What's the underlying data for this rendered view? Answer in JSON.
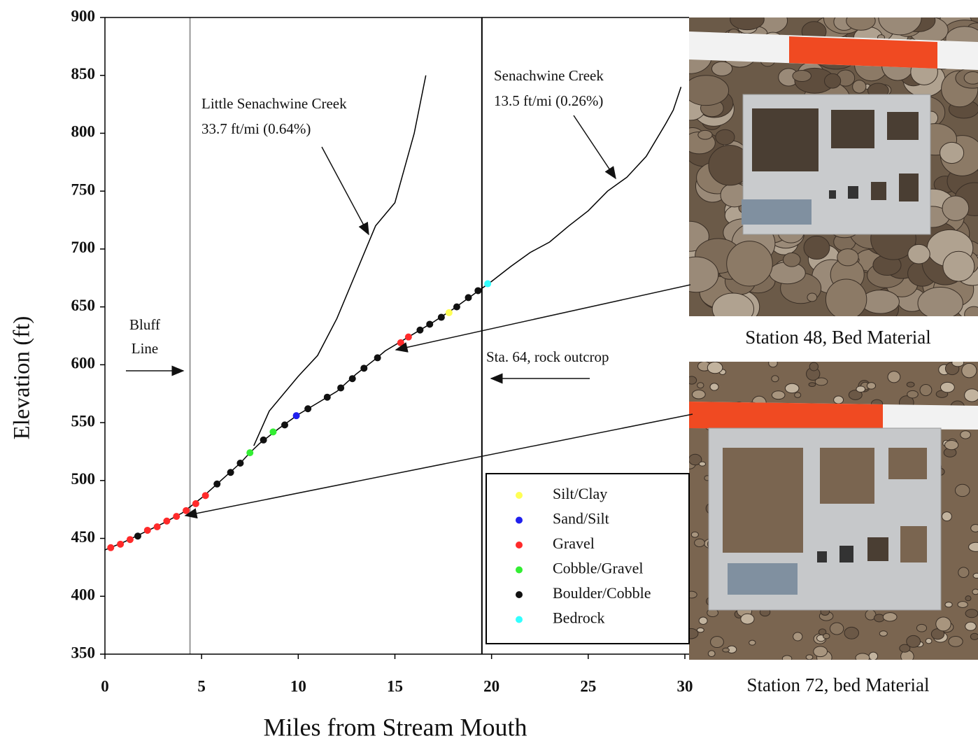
{
  "chart_data": {
    "type": "line",
    "x_label": "Miles from Stream Mouth",
    "y_label": "Elevation (ft)",
    "xlim": [
      0,
      30
    ],
    "xticks": [
      0,
      5,
      10,
      15,
      20,
      25,
      30
    ],
    "ylim": [
      350,
      900
    ],
    "yticks": [
      350,
      400,
      450,
      500,
      550,
      600,
      650,
      700,
      750,
      800,
      850,
      900
    ],
    "profiles": [
      {
        "x": [
          0,
          1,
          2,
          3,
          4,
          5,
          6,
          7,
          7.5,
          8,
          9,
          10,
          11,
          12,
          13,
          14,
          14.5,
          15,
          16,
          17,
          18,
          19,
          20,
          21,
          22,
          23,
          24,
          25,
          26,
          27,
          28,
          29,
          29.4,
          29.8
        ],
        "values": [
          440,
          447,
          455,
          463,
          472,
          485,
          500,
          515,
          524,
          532,
          545,
          557,
          567,
          577,
          592,
          605,
          612,
          617,
          627,
          637,
          648,
          660,
          672,
          685,
          697,
          706,
          720,
          733,
          750,
          762,
          780,
          808,
          820,
          840
        ],
        "color": "#000000"
      },
      {
        "x": [
          7.7,
          8.5,
          10,
          11,
          12,
          13,
          14,
          15,
          15.5,
          16,
          16.6
        ],
        "values": [
          530,
          560,
          590,
          608,
          640,
          680,
          720,
          740,
          770,
          800,
          850
        ],
        "color": "#000000"
      }
    ],
    "vlines": [
      {
        "x": 4.4,
        "color": "#999999"
      },
      {
        "x": 19.5,
        "color": "#000000"
      }
    ],
    "series": [
      {
        "name": "Silt/Clay",
        "color": "#ffff55",
        "x": [
          17.8
        ],
        "values": [
          645
        ]
      },
      {
        "name": "Sand/Silt",
        "color": "#2020ee",
        "x": [
          9.9
        ],
        "values": [
          556
        ]
      },
      {
        "name": "Gravel",
        "color": "#ff2a2a",
        "x": [
          0.3,
          0.8,
          1.3,
          2.2,
          2.7,
          3.2,
          3.7,
          4.2,
          4.7,
          5.2,
          15.3,
          15.7
        ],
        "values": [
          442,
          445,
          449,
          457,
          460,
          465,
          469,
          474,
          480,
          487,
          619,
          624
        ]
      },
      {
        "name": "Cobble/Gravel",
        "color": "#33ee33",
        "x": [
          7.5,
          8.7
        ],
        "values": [
          524,
          542
        ]
      },
      {
        "name": "Boulder/Cobble",
        "color": "#111111",
        "x": [
          1.7,
          5.8,
          6.5,
          7,
          8.2,
          9.3,
          10.5,
          11.5,
          12.2,
          12.8,
          13.4,
          14.1,
          16.3,
          16.8,
          17.4,
          18.2,
          18.8,
          19.3
        ],
        "values": [
          452,
          497,
          507,
          515,
          535,
          548,
          562,
          572,
          580,
          588,
          597,
          606,
          630,
          635,
          641,
          650,
          658,
          664
        ]
      },
      {
        "name": "Bedrock",
        "color": "#33ffff",
        "x": [
          19.8
        ],
        "values": [
          670
        ]
      }
    ],
    "annotations": [
      "Little Senachwine Creek",
      "33.7 ft/mi (0.64%)",
      "Senachwine Creek",
      "13.5 ft/mi (0.26%)",
      "Bluff",
      "Line",
      "Sta. 64, rock outcrop"
    ],
    "photo_captions": [
      "Station 48, Bed Material",
      "Station 72, bed Material"
    ]
  }
}
